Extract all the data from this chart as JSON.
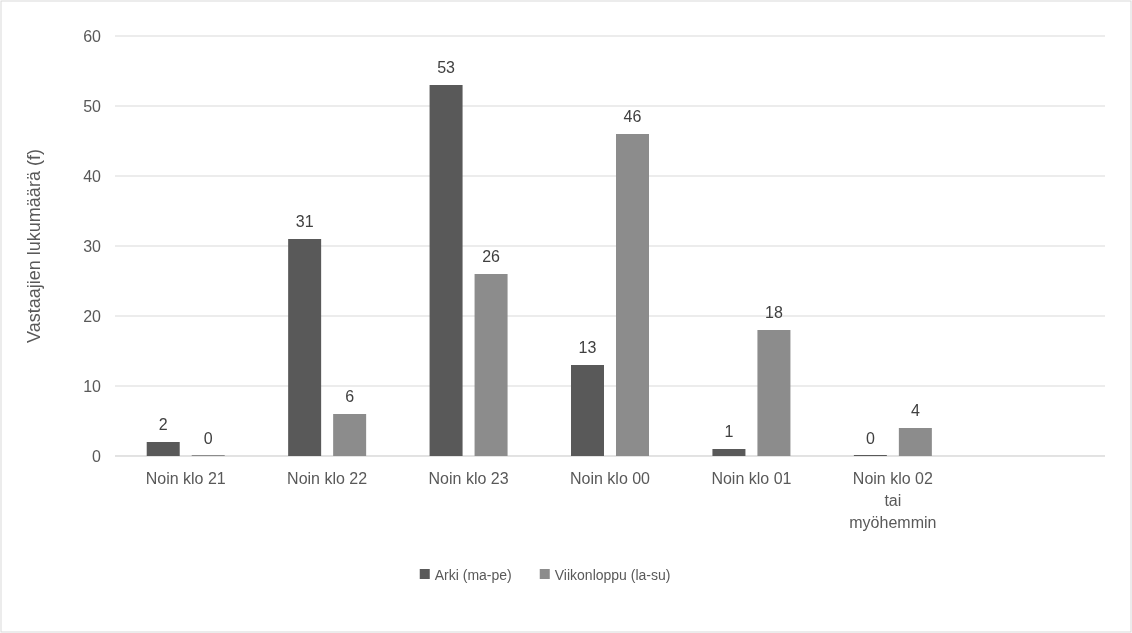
{
  "chart_data": {
    "type": "bar",
    "ylabel": "Vastaajien lukumäärä (f)",
    "categories": [
      "Noin klo 21",
      "Noin klo 22",
      "Noin klo 23",
      "Noin klo 00",
      "Noin klo 01",
      "Noin klo 02 tai myöhemmin",
      null
    ],
    "series": [
      {
        "name": "Arki (ma-pe)",
        "color": "#595959",
        "values": [
          2,
          31,
          53,
          13,
          1,
          0,
          null
        ]
      },
      {
        "name": "Viikonloppu (la-su)",
        "color": "#8c8c8c",
        "values": [
          0,
          6,
          26,
          46,
          18,
          4,
          null
        ]
      }
    ],
    "ylim": [
      0,
      60
    ],
    "yticks": [
      0,
      10,
      20,
      30,
      40,
      50,
      60
    ],
    "grid": "y",
    "legend": "bottom",
    "data_labels": true
  }
}
